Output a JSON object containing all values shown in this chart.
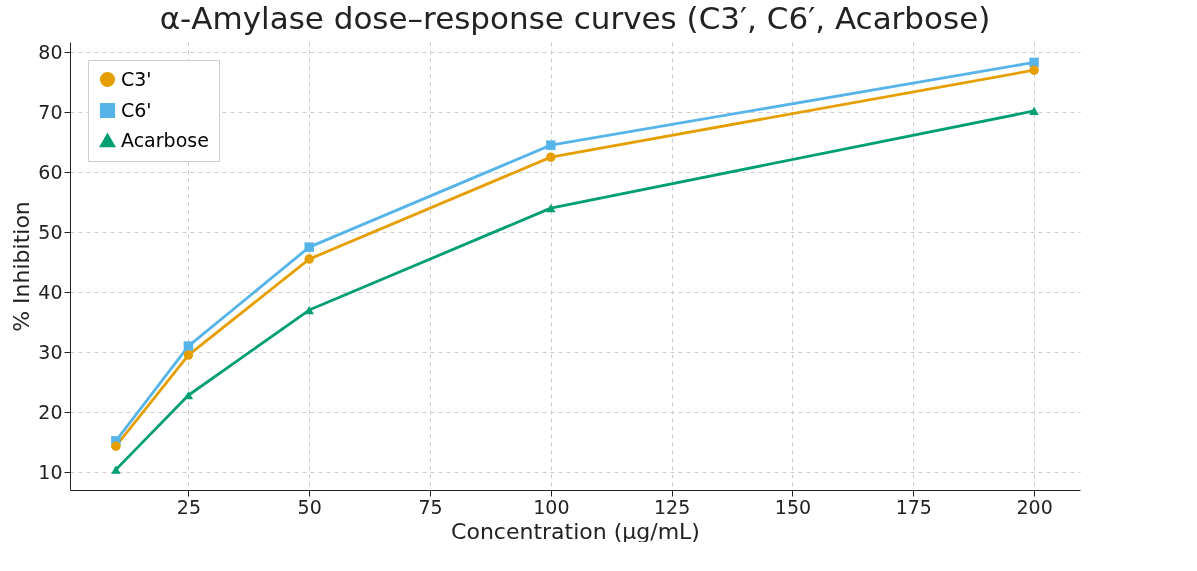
{
  "chart_data": {
    "type": "line",
    "title": "α-Amylase dose–response curves (C3′, C6′, Acarbose)",
    "xlabel": "Concentration (μg/mL)",
    "ylabel": "% Inhibition",
    "x": [
      10,
      25,
      50,
      100,
      200
    ],
    "series": [
      {
        "name": "C3'",
        "color": "#e69f00",
        "marker": "circle",
        "values": [
          14.3,
          29.5,
          45.5,
          62.5,
          77
        ]
      },
      {
        "name": "C6'",
        "color": "#56b4e9",
        "marker": "square",
        "values": [
          15.2,
          31,
          47.5,
          64.5,
          78.3
        ]
      },
      {
        "name": "Acarbose",
        "color": "#009e73",
        "marker": "triangle",
        "values": [
          10.4,
          22.8,
          37,
          54,
          70.2
        ]
      }
    ],
    "xlim": [
      0.5,
      209.5
    ],
    "xticks": [
      25,
      50,
      75,
      100,
      125,
      150,
      175,
      200
    ],
    "ylim": [
      7,
      81.7
    ],
    "yticks": [
      10,
      20,
      30,
      40,
      50,
      60,
      70,
      80
    ],
    "grid": true,
    "legend": "top left",
    "line_style": "solid"
  }
}
